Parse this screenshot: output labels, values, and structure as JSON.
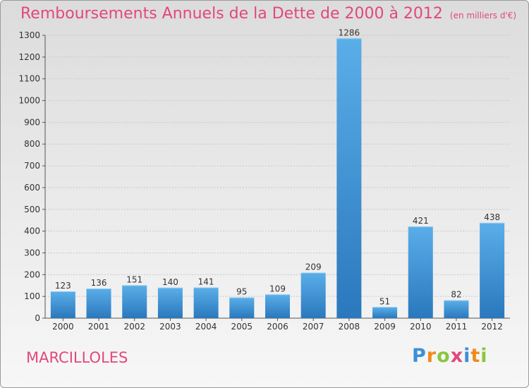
{
  "header": {
    "title": "Remboursements Annuels de la Dette de 2000 à 2012",
    "unit": "(en milliers d'€)"
  },
  "footer": {
    "commune": "MARCILLOLES",
    "logo": "Proxiti"
  },
  "colors": {
    "title": "#e2487a",
    "bar_light": "#5aaee8",
    "bar_dark": "#2a78bd"
  },
  "chart_data": {
    "type": "bar",
    "title": "Remboursements Annuels de la Dette de 2000 à 2012",
    "subtitle": "(en milliers d'€)",
    "categories": [
      "2000",
      "2001",
      "2002",
      "2003",
      "2004",
      "2005",
      "2006",
      "2007",
      "2008",
      "2009",
      "2010",
      "2011",
      "2012"
    ],
    "values": [
      123,
      136,
      151,
      140,
      141,
      95,
      109,
      209,
      1286,
      51,
      421,
      82,
      438
    ],
    "ylim": [
      0,
      1300
    ],
    "yticks": [
      0,
      100,
      200,
      300,
      400,
      500,
      600,
      700,
      800,
      900,
      1000,
      1100,
      1200,
      1300
    ],
    "grid": true,
    "data_labels": true
  }
}
